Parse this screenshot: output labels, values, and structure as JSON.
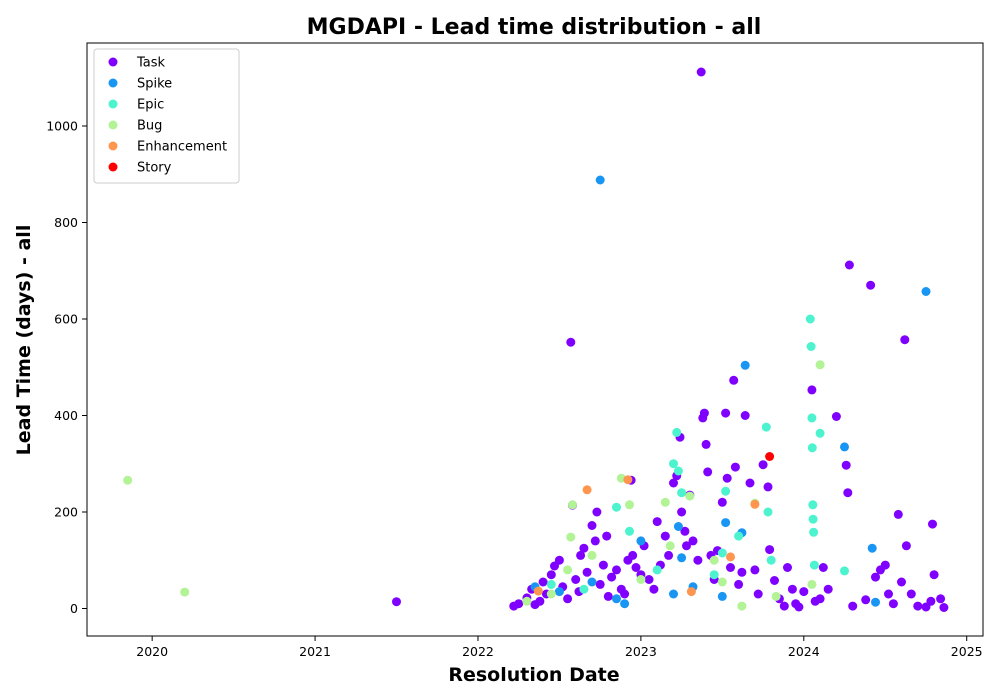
{
  "chart_data": {
    "type": "scatter",
    "title": "MGDAPI - Lead time distribution - all",
    "xlabel": "Resolution Date",
    "ylabel": "Lead Time (days) - all",
    "xlim": [
      2019.6,
      2025.1
    ],
    "ylim": [
      -57,
      1172
    ],
    "x_ticks": [
      2020,
      2021,
      2022,
      2023,
      2024,
      2025
    ],
    "y_ticks": [
      0,
      200,
      400,
      600,
      800,
      1000
    ],
    "grid": false,
    "legend_position": "top-left",
    "series": [
      {
        "name": "Task",
        "color": "#8000ff",
        "points": [
          [
            2021.5,
            14
          ],
          [
            2022.22,
            5
          ],
          [
            2022.25,
            10
          ],
          [
            2022.3,
            22
          ],
          [
            2022.33,
            40
          ],
          [
            2022.35,
            8
          ],
          [
            2022.38,
            15
          ],
          [
            2022.4,
            55
          ],
          [
            2022.42,
            30
          ],
          [
            2022.45,
            70
          ],
          [
            2022.47,
            88
          ],
          [
            2022.5,
            100
          ],
          [
            2022.52,
            45
          ],
          [
            2022.55,
            20
          ],
          [
            2022.57,
            552
          ],
          [
            2022.58,
            214
          ],
          [
            2022.6,
            60
          ],
          [
            2022.62,
            35
          ],
          [
            2022.63,
            110
          ],
          [
            2022.65,
            125
          ],
          [
            2022.67,
            75
          ],
          [
            2022.7,
            172
          ],
          [
            2022.72,
            140
          ],
          [
            2022.73,
            200
          ],
          [
            2022.75,
            50
          ],
          [
            2022.77,
            90
          ],
          [
            2022.79,
            150
          ],
          [
            2022.8,
            25
          ],
          [
            2022.82,
            65
          ],
          [
            2022.85,
            80
          ],
          [
            2022.88,
            40
          ],
          [
            2022.9,
            30
          ],
          [
            2022.92,
            100
          ],
          [
            2022.94,
            266
          ],
          [
            2022.95,
            110
          ],
          [
            2022.97,
            85
          ],
          [
            2023.0,
            70
          ],
          [
            2023.02,
            130
          ],
          [
            2023.05,
            60
          ],
          [
            2023.08,
            40
          ],
          [
            2023.1,
            180
          ],
          [
            2023.12,
            90
          ],
          [
            2023.15,
            150
          ],
          [
            2023.17,
            110
          ],
          [
            2023.2,
            260
          ],
          [
            2023.22,
            275
          ],
          [
            2023.24,
            355
          ],
          [
            2023.25,
            200
          ],
          [
            2023.27,
            160
          ],
          [
            2023.28,
            130
          ],
          [
            2023.3,
            235
          ],
          [
            2023.32,
            140
          ],
          [
            2023.35,
            100
          ],
          [
            2023.37,
            1112
          ],
          [
            2023.38,
            395
          ],
          [
            2023.39,
            405
          ],
          [
            2023.4,
            340
          ],
          [
            2023.41,
            283
          ],
          [
            2023.43,
            110
          ],
          [
            2023.45,
            60
          ],
          [
            2023.47,
            120
          ],
          [
            2023.5,
            220
          ],
          [
            2023.52,
            405
          ],
          [
            2023.53,
            270
          ],
          [
            2023.55,
            85
          ],
          [
            2023.57,
            473
          ],
          [
            2023.58,
            293
          ],
          [
            2023.6,
            50
          ],
          [
            2023.62,
            75
          ],
          [
            2023.64,
            400
          ],
          [
            2023.67,
            260
          ],
          [
            2023.7,
            80
          ],
          [
            2023.72,
            30
          ],
          [
            2023.75,
            298
          ],
          [
            2023.78,
            252
          ],
          [
            2023.79,
            122
          ],
          [
            2023.82,
            58
          ],
          [
            2023.85,
            20
          ],
          [
            2023.88,
            5
          ],
          [
            2023.9,
            85
          ],
          [
            2023.93,
            40
          ],
          [
            2023.95,
            10
          ],
          [
            2023.97,
            3
          ],
          [
            2024.0,
            35
          ],
          [
            2024.05,
            453
          ],
          [
            2024.07,
            15
          ],
          [
            2024.1,
            20
          ],
          [
            2024.12,
            85
          ],
          [
            2024.15,
            40
          ],
          [
            2024.2,
            398
          ],
          [
            2024.26,
            297
          ],
          [
            2024.27,
            240
          ],
          [
            2024.28,
            712
          ],
          [
            2024.3,
            5
          ],
          [
            2024.38,
            18
          ],
          [
            2024.41,
            670
          ],
          [
            2024.44,
            65
          ],
          [
            2024.47,
            80
          ],
          [
            2024.5,
            90
          ],
          [
            2024.52,
            30
          ],
          [
            2024.55,
            10
          ],
          [
            2024.58,
            195
          ],
          [
            2024.6,
            55
          ],
          [
            2024.62,
            557
          ],
          [
            2024.63,
            130
          ],
          [
            2024.66,
            30
          ],
          [
            2024.7,
            5
          ],
          [
            2024.75,
            3
          ],
          [
            2024.78,
            15
          ],
          [
            2024.79,
            175
          ],
          [
            2024.8,
            70
          ],
          [
            2024.84,
            20
          ],
          [
            2024.86,
            2
          ]
        ]
      },
      {
        "name": "Spike",
        "color": "#1996f3",
        "points": [
          [
            2022.35,
            45
          ],
          [
            2022.5,
            35
          ],
          [
            2022.7,
            55
          ],
          [
            2022.75,
            888
          ],
          [
            2022.85,
            20
          ],
          [
            2022.9,
            10
          ],
          [
            2023.0,
            140
          ],
          [
            2023.2,
            30
          ],
          [
            2023.23,
            170
          ],
          [
            2023.25,
            105
          ],
          [
            2023.32,
            45
          ],
          [
            2023.5,
            25
          ],
          [
            2023.52,
            178
          ],
          [
            2023.62,
            157
          ],
          [
            2023.64,
            504
          ],
          [
            2024.25,
            335
          ],
          [
            2024.42,
            125
          ],
          [
            2024.44,
            13
          ],
          [
            2024.75,
            657
          ]
        ]
      },
      {
        "name": "Epic",
        "color": "#4df3ce",
        "points": [
          [
            2022.45,
            50
          ],
          [
            2022.65,
            40
          ],
          [
            2022.85,
            210
          ],
          [
            2022.93,
            160
          ],
          [
            2023.1,
            80
          ],
          [
            2023.2,
            300
          ],
          [
            2023.22,
            365
          ],
          [
            2023.23,
            285
          ],
          [
            2023.25,
            240
          ],
          [
            2023.45,
            70
          ],
          [
            2023.5,
            115
          ],
          [
            2023.52,
            243
          ],
          [
            2023.6,
            150
          ],
          [
            2023.77,
            376
          ],
          [
            2023.78,
            200
          ],
          [
            2023.8,
            100
          ],
          [
            2024.04,
            600
          ],
          [
            2024.045,
            543
          ],
          [
            2024.05,
            395
          ],
          [
            2024.052,
            333
          ],
          [
            2024.055,
            215
          ],
          [
            2024.057,
            185
          ],
          [
            2024.06,
            158
          ],
          [
            2024.065,
            90
          ],
          [
            2024.1,
            363
          ],
          [
            2024.25,
            78
          ]
        ]
      },
      {
        "name": "Bug",
        "color": "#b2f396",
        "points": [
          [
            2019.85,
            266
          ],
          [
            2020.2,
            34
          ],
          [
            2022.3,
            15
          ],
          [
            2022.45,
            30
          ],
          [
            2022.55,
            80
          ],
          [
            2022.57,
            148
          ],
          [
            2022.58,
            215
          ],
          [
            2022.7,
            110
          ],
          [
            2022.88,
            270
          ],
          [
            2022.93,
            215
          ],
          [
            2023.0,
            60
          ],
          [
            2023.15,
            220
          ],
          [
            2023.18,
            130
          ],
          [
            2023.3,
            233
          ],
          [
            2023.45,
            100
          ],
          [
            2023.5,
            55
          ],
          [
            2023.62,
            5
          ],
          [
            2023.7,
            218
          ],
          [
            2023.83,
            25
          ],
          [
            2024.05,
            50
          ],
          [
            2024.1,
            505
          ]
        ]
      },
      {
        "name": "Enhancement",
        "color": "#ff964f",
        "points": [
          [
            2022.37,
            36
          ],
          [
            2022.67,
            246
          ],
          [
            2022.92,
            267
          ],
          [
            2023.31,
            35
          ],
          [
            2023.55,
            107
          ],
          [
            2023.7,
            216
          ]
        ]
      },
      {
        "name": "Story",
        "color": "#ff0000",
        "points": [
          [
            2023.79,
            315
          ]
        ]
      }
    ]
  }
}
